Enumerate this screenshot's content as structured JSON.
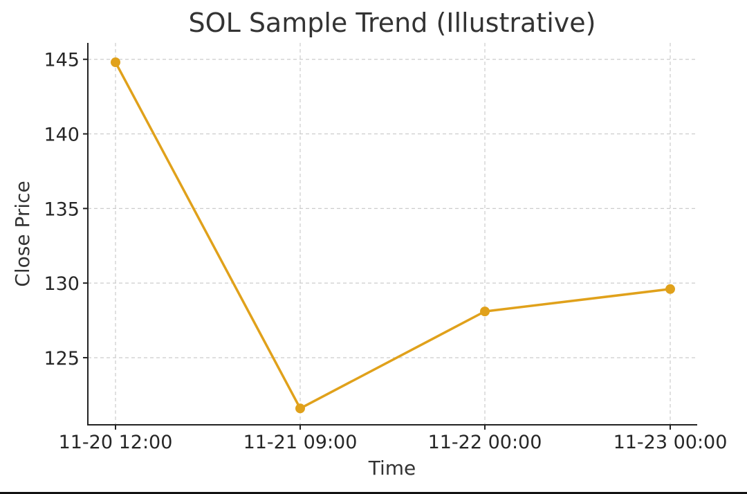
{
  "chart_data": {
    "type": "line",
    "title": "SOL Sample Trend (Illustrative)",
    "xlabel": "Time",
    "ylabel": "Close Price",
    "x": [
      "11-20 12:00",
      "11-21 09:00",
      "11-22 00:00",
      "11-23 00:00"
    ],
    "series": [
      {
        "values": [
          144.8,
          121.6,
          128.1,
          129.6
        ],
        "color": "#e0a11b",
        "marker": "circle"
      }
    ],
    "yticks": [
      125,
      130,
      135,
      140,
      145
    ],
    "ylim": [
      120.5,
      146.1
    ],
    "grid": true,
    "legend": "none"
  }
}
